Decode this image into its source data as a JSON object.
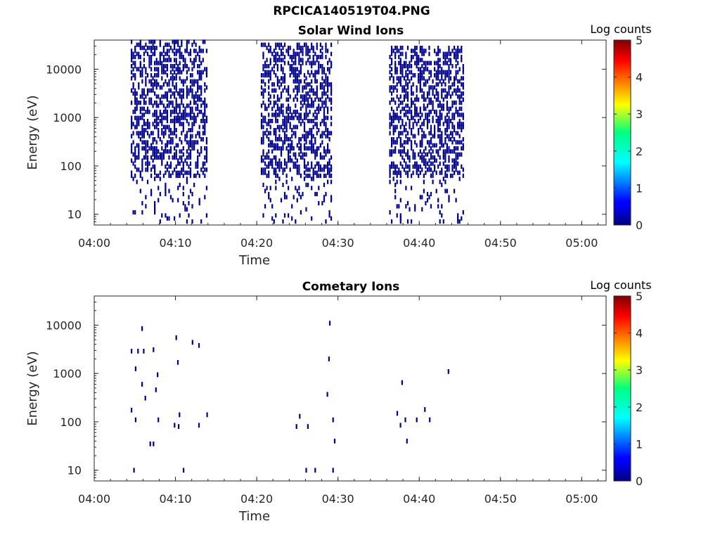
{
  "figure": {
    "title": "RPCICA140519T04.PNG"
  },
  "chart_data": [
    {
      "type": "heatmap",
      "title": "Solar Wind Ions",
      "xlabel": "Time",
      "ylabel": "Energy (eV)",
      "x_ticks": [
        "04:00",
        "04:10",
        "04:20",
        "04:30",
        "04:40",
        "04:50",
        "05:00"
      ],
      "xlim": [
        "04:00",
        "05:03"
      ],
      "y_scale": "log",
      "y_ticks": [
        "10",
        "100",
        "1000",
        "10000"
      ],
      "ylim": [
        6,
        40000
      ],
      "colorbar": {
        "label": "Log counts",
        "ticks": [
          "0",
          "1",
          "2",
          "3",
          "4",
          "5"
        ],
        "range": [
          0,
          5
        ],
        "colormap": "jet"
      },
      "bursts": [
        {
          "start": "04:04.5",
          "end": "04:13.8",
          "emin": 7,
          "emax": 40000,
          "level": 0
        },
        {
          "start": "04:20.5",
          "end": "04:29.2",
          "emin": 7,
          "emax": 35000,
          "level": 0
        },
        {
          "start": "04:36.3",
          "end": "04:45.4",
          "emin": 7,
          "emax": 30000,
          "level": 0
        }
      ]
    },
    {
      "type": "heatmap",
      "title": "Cometary Ions",
      "xlabel": "Time",
      "ylabel": "Energy (eV)",
      "x_ticks": [
        "04:00",
        "04:10",
        "04:20",
        "04:30",
        "04:40",
        "04:50",
        "05:00"
      ],
      "xlim": [
        "04:00",
        "05:03"
      ],
      "y_scale": "log",
      "y_ticks": [
        "10",
        "100",
        "1000",
        "10000"
      ],
      "ylim": [
        6,
        40000
      ],
      "colorbar": {
        "label": "Log counts",
        "ticks": [
          "0",
          "1",
          "2",
          "3",
          "4",
          "5"
        ],
        "range": [
          0,
          5
        ],
        "colormap": "jet"
      },
      "points": [
        {
          "t": "04:04.5",
          "e": 2900
        },
        {
          "t": "04:05.3",
          "e": 2900
        },
        {
          "t": "04:05.8",
          "e": 8500
        },
        {
          "t": "04:06.0",
          "e": 2900
        },
        {
          "t": "04:07.2",
          "e": 3100
        },
        {
          "t": "04:10.0",
          "e": 5500
        },
        {
          "t": "04:10.2",
          "e": 1700
        },
        {
          "t": "04:12.0",
          "e": 4400
        },
        {
          "t": "04:12.8",
          "e": 3800
        },
        {
          "t": "04:05.0",
          "e": 1250
        },
        {
          "t": "04:07.7",
          "e": 940
        },
        {
          "t": "04:05.8",
          "e": 600
        },
        {
          "t": "04:07.5",
          "e": 460
        },
        {
          "t": "04:06.2",
          "e": 310
        },
        {
          "t": "04:04.5",
          "e": 175
        },
        {
          "t": "04:05.0",
          "e": 110
        },
        {
          "t": "04:07.8",
          "e": 110
        },
        {
          "t": "04:09.8",
          "e": 85
        },
        {
          "t": "04:10.4",
          "e": 140
        },
        {
          "t": "04:10.3",
          "e": 80
        },
        {
          "t": "04:12.8",
          "e": 85
        },
        {
          "t": "04:13.8",
          "e": 140
        },
        {
          "t": "04:06.8",
          "e": 35
        },
        {
          "t": "04:07.2",
          "e": 35
        },
        {
          "t": "04:04.8",
          "e": 10
        },
        {
          "t": "04:10.9",
          "e": 10
        },
        {
          "t": "04:24.8",
          "e": 80
        },
        {
          "t": "04:25.2",
          "e": 130
        },
        {
          "t": "04:26.2",
          "e": 80
        },
        {
          "t": "04:26.0",
          "e": 10
        },
        {
          "t": "04:27.1",
          "e": 10
        },
        {
          "t": "04:28.6",
          "e": 370
        },
        {
          "t": "04:28.8",
          "e": 2000
        },
        {
          "t": "04:28.9",
          "e": 11000
        },
        {
          "t": "04:29.3",
          "e": 110
        },
        {
          "t": "04:29.5",
          "e": 40
        },
        {
          "t": "04:29.3",
          "e": 10
        },
        {
          "t": "04:37.2",
          "e": 150
        },
        {
          "t": "04:37.8",
          "e": 650
        },
        {
          "t": "04:37.6",
          "e": 85
        },
        {
          "t": "04:38.2",
          "e": 110
        },
        {
          "t": "04:38.4",
          "e": 40
        },
        {
          "t": "04:39.6",
          "e": 110
        },
        {
          "t": "04:40.6",
          "e": 180
        },
        {
          "t": "04:41.2",
          "e": 110
        },
        {
          "t": "04:43.5",
          "e": 1100
        }
      ]
    }
  ]
}
